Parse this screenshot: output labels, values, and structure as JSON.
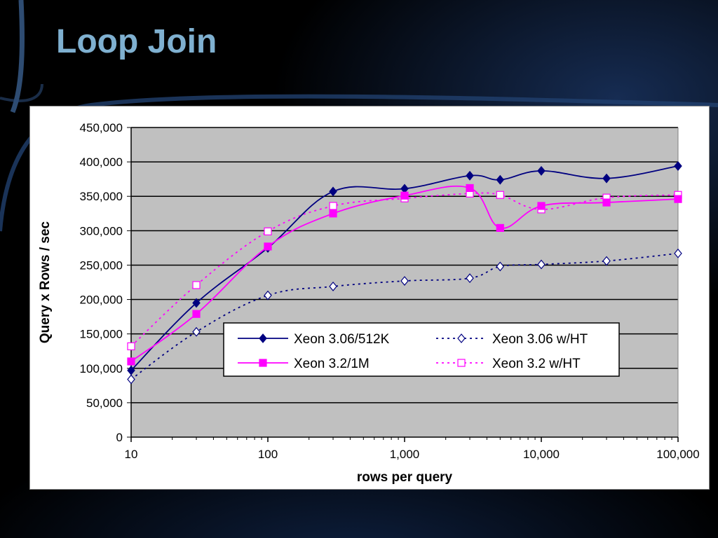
{
  "slide": {
    "title": "Loop Join"
  },
  "chart_data": {
    "type": "line",
    "xscale": "log",
    "xlim": [
      10,
      100000
    ],
    "ylim": [
      0,
      450000
    ],
    "xlabel": "rows per query",
    "ylabel": "Query x Rows / sec",
    "xticks": [
      10,
      100,
      1000,
      10000,
      100000
    ],
    "xtick_labels": [
      "10",
      "100",
      "1,000",
      "10,000",
      "100,000"
    ],
    "yticks": [
      0,
      50000,
      100000,
      150000,
      200000,
      250000,
      300000,
      350000,
      400000,
      450000
    ],
    "ytick_labels": [
      "0",
      "50,000",
      "100,000",
      "150,000",
      "200,000",
      "250,000",
      "300,000",
      "350,000",
      "400,000",
      "450,000"
    ],
    "grid": "horizontal",
    "plot_background": "#c0c0c0",
    "legend_position": "center-lower",
    "series": [
      {
        "name": "Xeon 3.06/512K",
        "color": "#000080",
        "line": "solid",
        "marker": "diamond-filled",
        "points": [
          [
            10,
            97000
          ],
          [
            30,
            195000
          ],
          [
            100,
            275000
          ],
          [
            300,
            357000
          ],
          [
            1000,
            361000
          ],
          [
            3000,
            380000
          ],
          [
            5000,
            374000
          ],
          [
            10000,
            387000
          ],
          [
            30000,
            376000
          ],
          [
            100000,
            394000
          ]
        ]
      },
      {
        "name": "Xeon 3.06 w/HT",
        "color": "#000080",
        "line": "dotted",
        "marker": "diamond-open",
        "points": [
          [
            10,
            84000
          ],
          [
            30,
            153000
          ],
          [
            100,
            206000
          ],
          [
            300,
            219000
          ],
          [
            1000,
            227000
          ],
          [
            3000,
            231000
          ],
          [
            5000,
            248000
          ],
          [
            10000,
            251000
          ],
          [
            30000,
            256000
          ],
          [
            100000,
            267000
          ]
        ]
      },
      {
        "name": "Xeon 3.2/1M",
        "color": "#ff00ff",
        "line": "solid",
        "marker": "square-filled",
        "points": [
          [
            10,
            110000
          ],
          [
            30,
            179000
          ],
          [
            100,
            277000
          ],
          [
            300,
            325000
          ],
          [
            1000,
            351000
          ],
          [
            3000,
            362000
          ],
          [
            5000,
            304000
          ],
          [
            10000,
            336000
          ],
          [
            30000,
            341000
          ],
          [
            100000,
            346000
          ]
        ]
      },
      {
        "name": "Xeon 3.2 w/HT",
        "color": "#ff00ff",
        "line": "dotted",
        "marker": "square-open",
        "points": [
          [
            10,
            132000
          ],
          [
            30,
            221000
          ],
          [
            100,
            299000
          ],
          [
            300,
            336000
          ],
          [
            1000,
            347000
          ],
          [
            3000,
            354000
          ],
          [
            5000,
            352000
          ],
          [
            10000,
            331000
          ],
          [
            30000,
            348000
          ],
          [
            100000,
            352000
          ]
        ]
      }
    ]
  }
}
